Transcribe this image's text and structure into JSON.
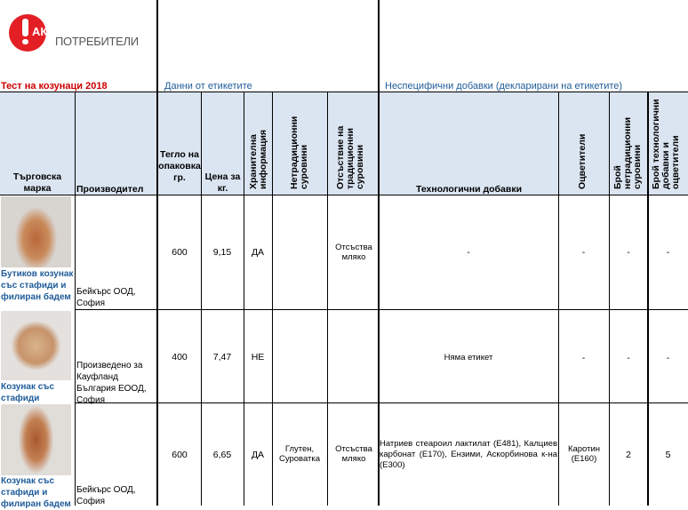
{
  "logo": {
    "word1": "АКТИВНИ",
    "word2": "ПОТРЕБИТЕЛИ",
    "color": "#e31e24"
  },
  "title": "Тест на козунаци 2018",
  "sections": {
    "label_data": "Данни от етикетите",
    "additives": "Неспецифични добавки (декларирани на етикетите)"
  },
  "headers": [
    "Търговска марка",
    "Производител",
    "Тегло на опаковка гр.",
    "Цена за кг.",
    "Хранителна информация",
    "Нетрадиционни суровини",
    "Отсъствие на традиционни суровини",
    "Технологични добавки",
    "Оцветители",
    "Брой нетрадиционни суровини",
    "Брой технологични добавки и оцветители"
  ],
  "rows": [
    {
      "brand": "Бутиков козунак със стафиди и филиран бадем",
      "producer": "Бейкърс ООД, София",
      "weight": "600",
      "price": "9,15",
      "nutrition": "ДА",
      "nontraditional": "",
      "absent": "Отсъства мляко",
      "tech": "-",
      "colorants": "-",
      "count_nontrad": "-",
      "count_tech": "-"
    },
    {
      "brand": "Козунак със стафиди",
      "producer": "Произведено за Кауфланд България ЕООД, София",
      "weight": "400",
      "price": "7,47",
      "nutrition": "НЕ",
      "nontraditional": "",
      "absent": "",
      "tech": "Няма етикет",
      "colorants": "-",
      "count_nontrad": "-",
      "count_tech": "-"
    },
    {
      "brand": "Козунак със стафиди и филиран бадем",
      "producer": "Бейкърс ООД, София",
      "weight": "600",
      "price": "6,65",
      "nutrition": "ДА",
      "nontraditional": "Глутен, Суроватка",
      "absent": "Отсъства мляко",
      "tech": "Натриев стеароил лактилат (Е481), Калциев карбонат (Е170), Ензими, Аскорбинова к-на (Е300)",
      "colorants": "Каротин (Е160)",
      "count_nontrad": "2",
      "count_tech": "5"
    }
  ]
}
